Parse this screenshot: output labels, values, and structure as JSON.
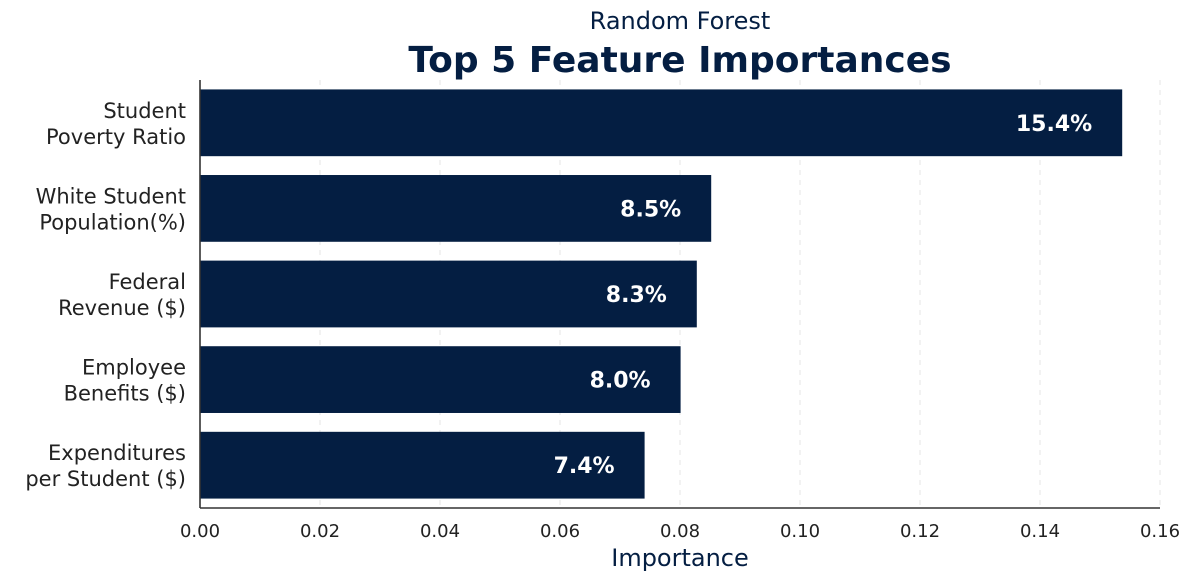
{
  "chart_data": {
    "type": "bar",
    "orientation": "horizontal",
    "subtitle": "Random Forest",
    "title": "Top 5 Feature Importances",
    "xlabel": "Importance",
    "ylabel": "",
    "xlim": [
      0.0,
      0.16
    ],
    "x_ticks": [
      "0.00",
      "0.02",
      "0.04",
      "0.06",
      "0.08",
      "0.10",
      "0.12",
      "0.14",
      "0.16"
    ],
    "grid": "vertical dashed",
    "legend": "none",
    "categories": [
      [
        "Student",
        "Poverty Ratio"
      ],
      [
        "White Student",
        "Population(%)"
      ],
      [
        "Federal",
        "Revenue ($)"
      ],
      [
        "Employee",
        "Benefits ($)"
      ],
      [
        "Expenditures",
        "per Student ($)"
      ]
    ],
    "values": [
      0.1537,
      0.0852,
      0.0828,
      0.0801,
      0.0741
    ],
    "data_labels": [
      "15.4%",
      "8.5%",
      "8.3%",
      "8.0%",
      "7.4%"
    ],
    "colors": {
      "bar": "#041e42",
      "title": "#041e42",
      "tick_text": "#222222",
      "axis": "#333333",
      "grid": "#e6e6e6",
      "data_label": "#ffffff"
    }
  }
}
